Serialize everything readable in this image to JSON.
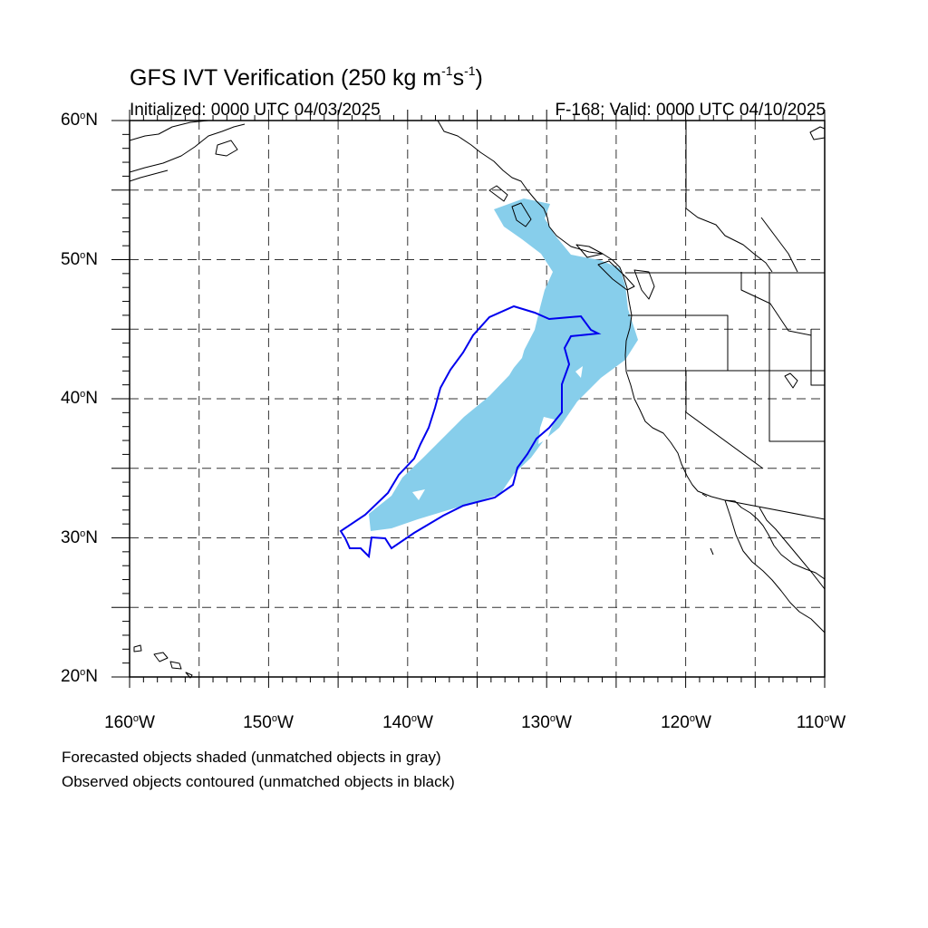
{
  "title": {
    "main": "GFS IVT Verification (250 kg m",
    "sup1": "-1",
    "mid": "s",
    "sup2": "-1",
    "end": ")"
  },
  "subtitle": {
    "left": "Initialized: 0000 UTC 04/03/2025",
    "right": "F-168: Valid: 0000 UTC 04/10/2025"
  },
  "axes": {
    "lat_labels": [
      {
        "num": "60",
        "hem": "N",
        "value": 60
      },
      {
        "num": "50",
        "hem": "N",
        "value": 50
      },
      {
        "num": "40",
        "hem": "N",
        "value": 40
      },
      {
        "num": "30",
        "hem": "N",
        "value": 30
      },
      {
        "num": "20",
        "hem": "N",
        "value": 20
      }
    ],
    "lon_labels": [
      {
        "num": "160",
        "hem": "W",
        "value": -160
      },
      {
        "num": "150",
        "hem": "W",
        "value": -150
      },
      {
        "num": "140",
        "hem": "W",
        "value": -140
      },
      {
        "num": "130",
        "hem": "W",
        "value": -130
      },
      {
        "num": "120",
        "hem": "W",
        "value": -120
      },
      {
        "num": "110",
        "hem": "W",
        "value": -110
      }
    ],
    "degree_symbol": "o",
    "lon_range": [
      -160,
      -110
    ],
    "lat_range": [
      20,
      60
    ]
  },
  "legend": {
    "line1": "Forecasted objects shaded (unmatched objects in gray)",
    "line2": "Observed objects contoured (unmatched objects in black)"
  },
  "colors": {
    "forecast_fill": "#87ceeb",
    "observed_contour": "#0000ee",
    "coastline": "#000000",
    "grid": "#333333"
  }
}
